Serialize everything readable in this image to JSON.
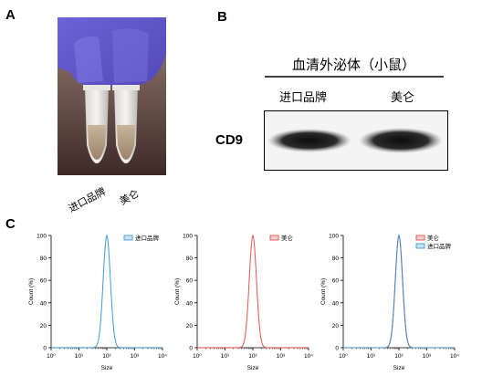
{
  "panels": {
    "a": "A",
    "b": "B",
    "c": "C"
  },
  "panel_a": {
    "tube_labels": [
      "进口品牌",
      "美仑"
    ]
  },
  "panel_b": {
    "header": "血清外泌体（小鼠）",
    "lanes": [
      "进口品牌",
      "美仑"
    ],
    "protein": "CD9"
  },
  "chart_data": [
    {
      "type": "line",
      "xscale": "log",
      "xlim": [
        1,
        10000
      ],
      "ylim": [
        0,
        100
      ],
      "xlabel": "Size",
      "ylabel": "Count (%)",
      "xticks": [
        "10⁰",
        "10¹",
        "10²",
        "10³",
        "10⁴"
      ],
      "yticks": [
        "0",
        "20",
        "40",
        "60",
        "80",
        "100"
      ],
      "legend": "top-right",
      "series": [
        {
          "name": "进口品牌",
          "color": "#2a8fd0",
          "peak_x": 100,
          "peak_y": 100,
          "width_decades": 0.13
        }
      ]
    },
    {
      "type": "line",
      "xscale": "log",
      "xlim": [
        1,
        10000
      ],
      "ylim": [
        0,
        100
      ],
      "xlabel": "Size",
      "ylabel": "Count (%)",
      "xticks": [
        "10⁰",
        "10¹",
        "10²",
        "10³",
        "10⁴"
      ],
      "yticks": [
        "0",
        "20",
        "40",
        "60",
        "80",
        "100"
      ],
      "legend": "top-right",
      "series": [
        {
          "name": "美仑",
          "color": "#e0403c",
          "peak_x": 100,
          "peak_y": 100,
          "width_decades": 0.13
        }
      ]
    },
    {
      "type": "line",
      "xscale": "log",
      "xlim": [
        1,
        10000
      ],
      "ylim": [
        0,
        100
      ],
      "xlabel": "Size",
      "ylabel": "Count (%)",
      "xticks": [
        "10⁰",
        "10¹",
        "10²",
        "10³",
        "10⁴"
      ],
      "yticks": [
        "0",
        "20",
        "40",
        "60",
        "80",
        "100"
      ],
      "legend": "top-right",
      "series": [
        {
          "name": "美仑",
          "color": "#e0403c",
          "peak_x": 100,
          "peak_y": 100,
          "width_decades": 0.13
        },
        {
          "name": "进口品牌",
          "color": "#2a8fd0",
          "peak_x": 100,
          "peak_y": 100,
          "width_decades": 0.13
        }
      ]
    }
  ]
}
